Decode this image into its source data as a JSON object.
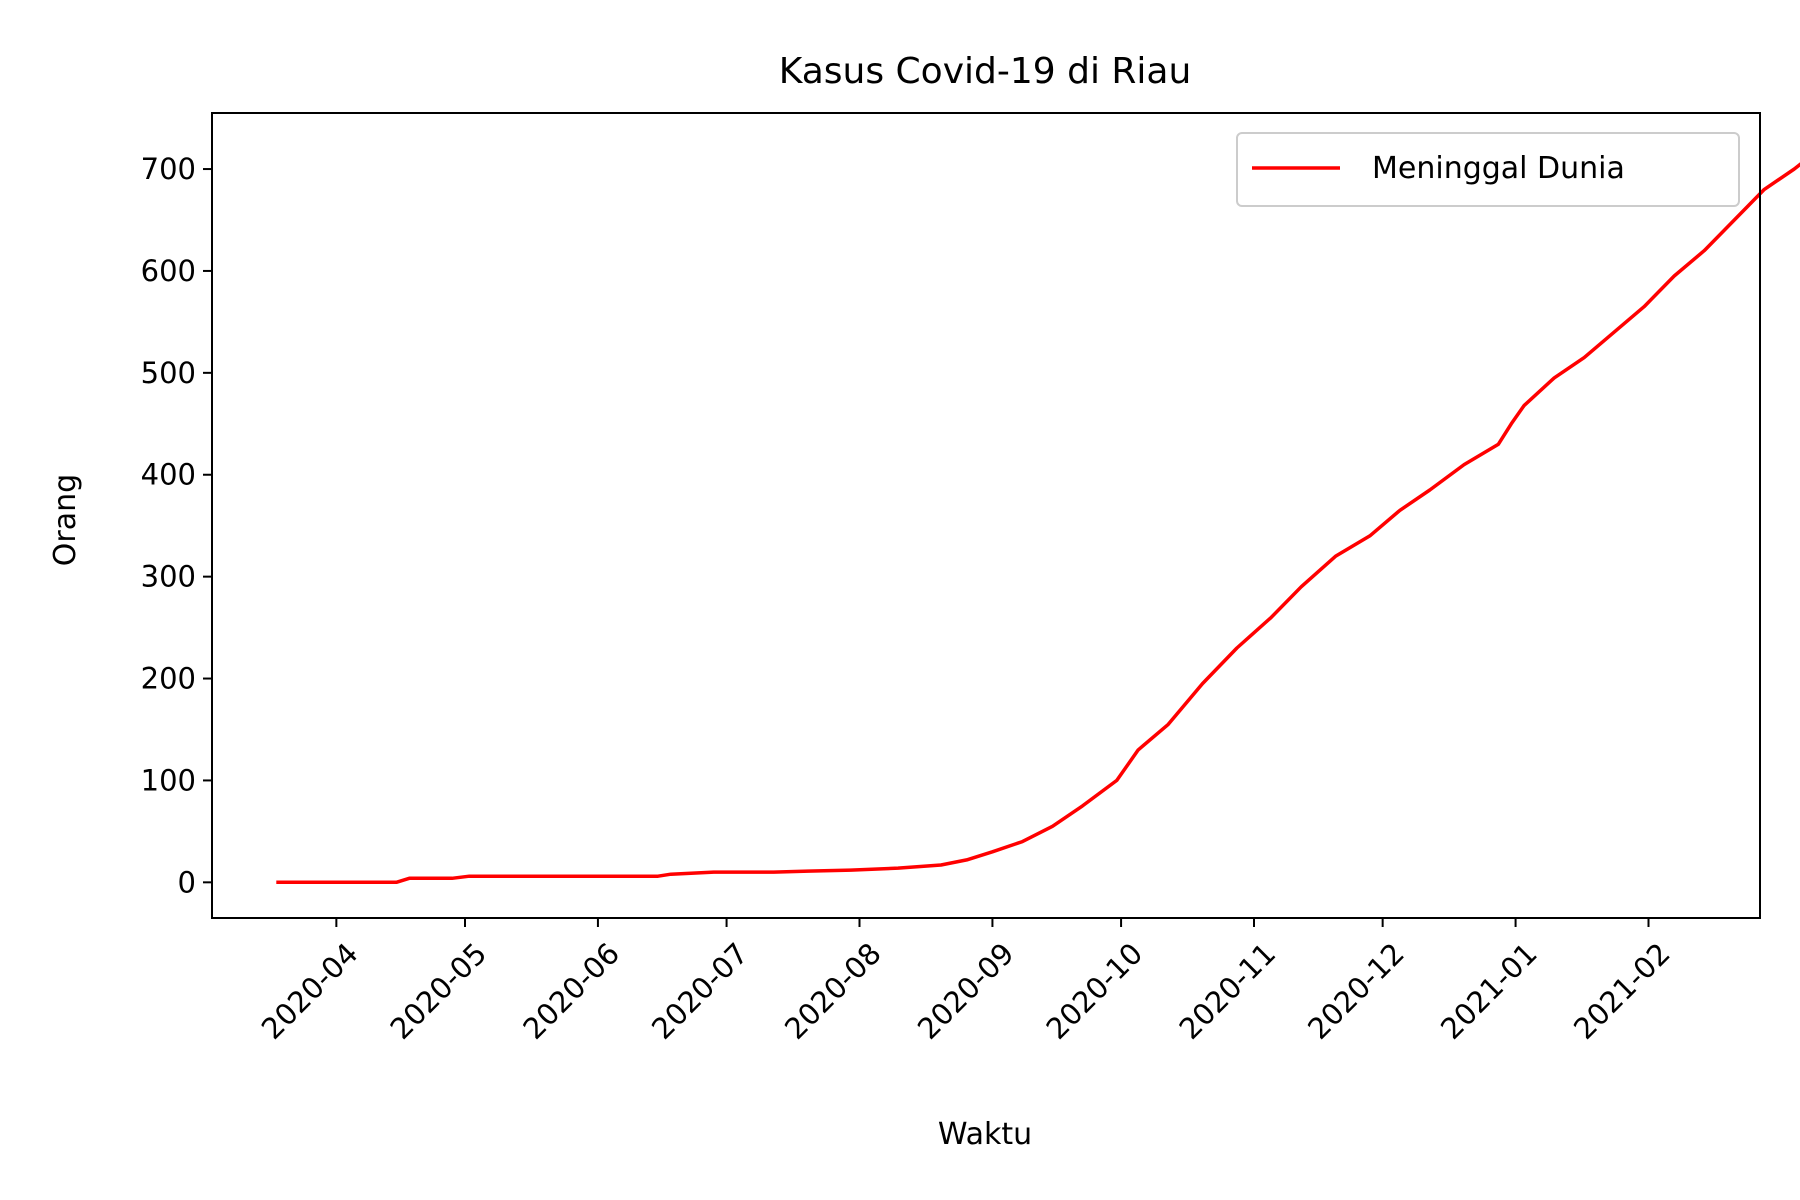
{
  "chart_data": {
    "type": "line",
    "title": "Kasus Covid-19 di Riau",
    "xlabel": "Waktu",
    "ylabel": "Orang",
    "x_ticks": [
      "2020-04-01",
      "2020-05-01",
      "2020-06-01",
      "2020-07-01",
      "2020-08-01",
      "2020-09-01",
      "2020-10-01",
      "2020-11-01",
      "2020-12-01",
      "2021-01-01",
      "2021-02-01"
    ],
    "x_tick_labels": [
      "2020-04",
      "2020-05",
      "2020-06",
      "2020-07",
      "2020-08",
      "2020-09",
      "2020-10",
      "2020-11",
      "2020-12",
      "2021-01",
      "2021-02"
    ],
    "xlim": [
      "2020-03-03",
      "2021-02-27"
    ],
    "ylim": [
      -35,
      755
    ],
    "y_ticks": [
      0,
      100,
      200,
      300,
      400,
      500,
      600,
      700
    ],
    "y_tick_labels": [
      "0",
      "100",
      "200",
      "300",
      "400",
      "500",
      "600",
      "700"
    ],
    "grid": false,
    "legend": {
      "position": "upper-right",
      "entries": [
        "Meninggal Dunia"
      ]
    },
    "series": [
      {
        "name": "Meninggal Dunia",
        "color": "#ff0000",
        "points": [
          [
            "2020-03-18",
            0
          ],
          [
            "2020-04-15",
            0
          ],
          [
            "2020-04-18",
            4
          ],
          [
            "2020-04-28",
            4
          ],
          [
            "2020-05-02",
            6
          ],
          [
            "2020-05-25",
            6
          ],
          [
            "2020-06-15",
            6
          ],
          [
            "2020-06-18",
            8
          ],
          [
            "2020-06-28",
            10
          ],
          [
            "2020-07-12",
            10
          ],
          [
            "2020-07-20",
            11
          ],
          [
            "2020-07-30",
            12
          ],
          [
            "2020-08-10",
            14
          ],
          [
            "2020-08-20",
            17
          ],
          [
            "2020-08-26",
            22
          ],
          [
            "2020-09-01",
            30
          ],
          [
            "2020-09-08",
            40
          ],
          [
            "2020-09-15",
            55
          ],
          [
            "2020-09-22",
            75
          ],
          [
            "2020-09-30",
            100
          ],
          [
            "2020-10-05",
            130
          ],
          [
            "2020-10-12",
            155
          ],
          [
            "2020-10-20",
            195
          ],
          [
            "2020-10-28",
            230
          ],
          [
            "2020-11-05",
            260
          ],
          [
            "2020-11-12",
            290
          ],
          [
            "2020-11-20",
            320
          ],
          [
            "2020-11-28",
            340
          ],
          [
            "2020-12-05",
            365
          ],
          [
            "2020-12-12",
            385
          ],
          [
            "2020-12-20",
            410
          ],
          [
            "2020-12-28",
            430
          ],
          [
            "2020-12-31",
            450
          ],
          [
            "2021-01-03",
            468
          ],
          [
            "2021-01-10",
            495
          ],
          [
            "2021-01-17",
            515
          ],
          [
            "2021-01-24",
            540
          ],
          [
            "2021-01-31",
            565
          ],
          [
            "2021-02-07",
            595
          ],
          [
            "2021-02-14",
            620
          ],
          [
            "2021-02-21",
            650
          ],
          [
            "2021-02-28",
            680
          ],
          [
            "2021-03-07",
            700
          ],
          [
            "2021-03-13",
            720
          ]
        ]
      }
    ]
  }
}
